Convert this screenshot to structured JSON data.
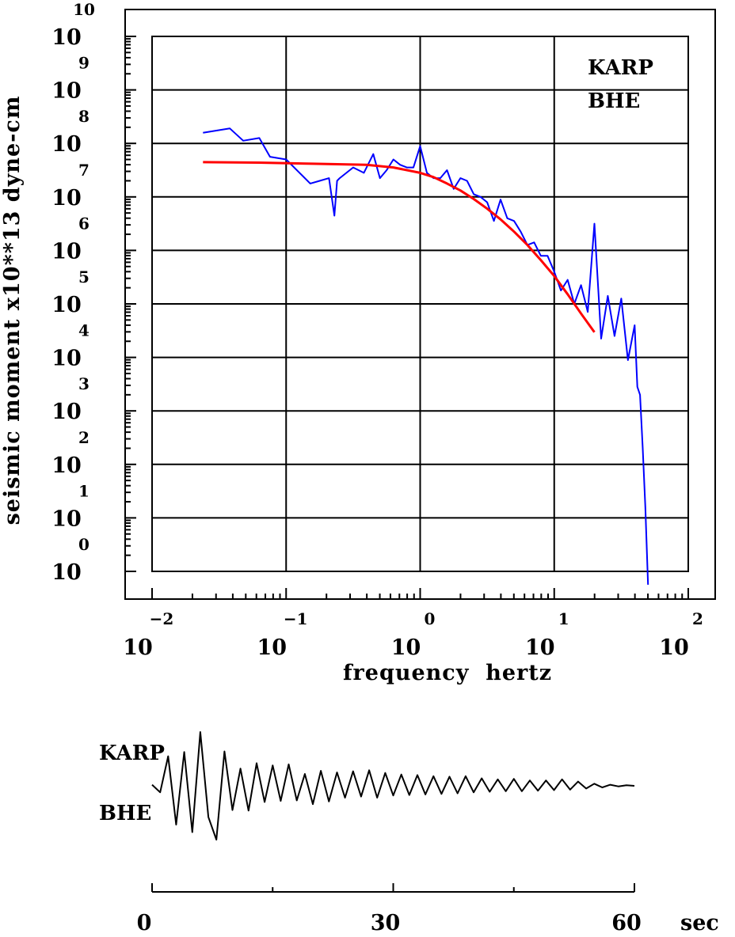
{
  "chart_data": [
    {
      "type": "line",
      "scale": "log-log",
      "station": "KARP",
      "component": "BHE",
      "xlabel": "frequency  hertz",
      "ylabel": "seismic moment x10**13 dyne-cm",
      "x_ticks": [
        {
          "base": "10",
          "exp": "−2"
        },
        {
          "base": "10",
          "exp": "−1"
        },
        {
          "base": "10",
          "exp": "0"
        },
        {
          "base": "10",
          "exp": "1"
        },
        {
          "base": "10",
          "exp": "2"
        }
      ],
      "y_ticks": [
        {
          "base": "10",
          "exp": "10"
        },
        {
          "base": "10",
          "exp": "9"
        },
        {
          "base": "10",
          "exp": "8"
        },
        {
          "base": "10",
          "exp": "7"
        },
        {
          "base": "10",
          "exp": "6"
        },
        {
          "base": "10",
          "exp": "5"
        },
        {
          "base": "10",
          "exp": "4"
        },
        {
          "base": "10",
          "exp": "3"
        },
        {
          "base": "10",
          "exp": "2"
        },
        {
          "base": "10",
          "exp": "1"
        },
        {
          "base": "10",
          "exp": "0"
        }
      ],
      "xlim_log10": [
        -2,
        2
      ],
      "ylim_log10": [
        0,
        10
      ],
      "grid": true,
      "series": [
        {
          "role": "observed spectrum",
          "color": "#0000ff",
          "x_log10": [
            -1.62,
            -1.42,
            -1.32,
            -1.2,
            -1.12,
            -1.0,
            -0.9,
            -0.82,
            -0.75,
            -0.68,
            -0.64,
            -0.62,
            -0.6,
            -0.5,
            -0.42,
            -0.35,
            -0.3,
            -0.25,
            -0.2,
            -0.15,
            -0.1,
            -0.05,
            0.0,
            0.05,
            0.1,
            0.15,
            0.2,
            0.25,
            0.3,
            0.35,
            0.4,
            0.45,
            0.5,
            0.55,
            0.6,
            0.65,
            0.7,
            0.75,
            0.8,
            0.85,
            0.9,
            0.95,
            1.0,
            1.05,
            1.1,
            1.15,
            1.2,
            1.25,
            1.3,
            1.35,
            1.4,
            1.45,
            1.5,
            1.55,
            1.6,
            1.62,
            1.64,
            1.66,
            1.68,
            1.7
          ],
          "y_log10": [
            8.2,
            8.28,
            8.05,
            8.1,
            7.75,
            7.7,
            7.45,
            7.25,
            7.3,
            7.35,
            6.65,
            7.3,
            7.35,
            7.55,
            7.45,
            7.8,
            7.35,
            7.5,
            7.7,
            7.6,
            7.55,
            7.55,
            7.95,
            7.45,
            7.35,
            7.35,
            7.5,
            7.15,
            7.35,
            7.3,
            7.05,
            7.0,
            6.9,
            6.55,
            6.95,
            6.6,
            6.55,
            6.35,
            6.1,
            6.15,
            5.9,
            5.9,
            5.6,
            5.25,
            5.45,
            5.0,
            5.35,
            4.85,
            6.5,
            4.35,
            5.15,
            4.4,
            5.1,
            3.95,
            4.6,
            3.45,
            3.3,
            2.3,
            1.2,
            -0.25
          ]
        },
        {
          "role": "model fit",
          "color": "#ff0000",
          "x_log10": [
            -1.62,
            -1.2,
            -0.8,
            -0.4,
            -0.2,
            0.0,
            0.1,
            0.2,
            0.3,
            0.4,
            0.5,
            0.6,
            0.7,
            0.8,
            0.9,
            1.0,
            1.1,
            1.2,
            1.3
          ],
          "y_log10": [
            7.65,
            7.64,
            7.62,
            7.6,
            7.55,
            7.45,
            7.37,
            7.25,
            7.12,
            6.96,
            6.78,
            6.58,
            6.35,
            6.1,
            5.82,
            5.52,
            5.18,
            4.82,
            4.47
          ]
        }
      ]
    },
    {
      "type": "line",
      "station": "KARP",
      "component": "BHE",
      "x_ticks": [
        "0",
        "30",
        "60"
      ],
      "x_unit": "sec",
      "xlim": [
        0,
        60
      ],
      "series": [
        {
          "role": "seismogram",
          "color": "#000000",
          "t": [
            0,
            1,
            2,
            3,
            4,
            5,
            6,
            7,
            8,
            9,
            10,
            11,
            12,
            13,
            14,
            15,
            16,
            17,
            18,
            19,
            20,
            21,
            22,
            23,
            24,
            25,
            26,
            27,
            28,
            29,
            30,
            31,
            32,
            33,
            34,
            35,
            36,
            37,
            38,
            39,
            40,
            41,
            42,
            43,
            44,
            45,
            46,
            47,
            48,
            49,
            50,
            51,
            52,
            53,
            54,
            55,
            56,
            57,
            58,
            59,
            60
          ],
          "amp": [
            0.02,
            -0.12,
            0.55,
            -0.72,
            0.63,
            -0.86,
            1.0,
            -0.58,
            -1.0,
            0.64,
            -0.45,
            0.32,
            -0.46,
            0.42,
            -0.3,
            0.38,
            -0.28,
            0.4,
            -0.27,
            0.22,
            -0.34,
            0.28,
            -0.29,
            0.25,
            -0.22,
            0.27,
            -0.2,
            0.29,
            -0.22,
            0.24,
            -0.18,
            0.21,
            -0.17,
            0.2,
            -0.16,
            0.18,
            -0.15,
            0.17,
            -0.14,
            0.18,
            -0.12,
            0.14,
            -0.11,
            0.12,
            -0.1,
            0.13,
            -0.1,
            0.1,
            -0.09,
            0.1,
            -0.08,
            0.12,
            -0.07,
            0.08,
            -0.05,
            0.04,
            -0.03,
            0.02,
            -0.01,
            0.01,
            0.0
          ]
        }
      ]
    }
  ]
}
